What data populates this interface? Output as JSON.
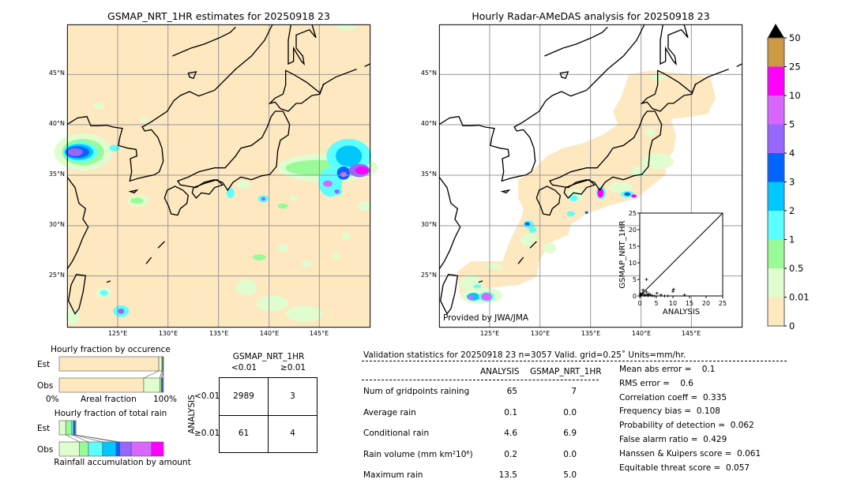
{
  "left_map": {
    "title": "GSMAP_NRT_1HR estimates for 20250918 23",
    "background": "#fee8c0"
  },
  "right_map": {
    "title": "Hourly Radar-AMeDAS analysis for 20250918 23",
    "credit": "Provided by JWA/JMA"
  },
  "lat_labels": [
    "45°N",
    "40°N",
    "35°N",
    "30°N",
    "25°N"
  ],
  "lon_labels": [
    "125°E",
    "130°E",
    "135°E",
    "140°E",
    "145°E"
  ],
  "colorbar": {
    "labels": [
      "0",
      "0.01",
      "0.5",
      "1",
      "2",
      "3",
      "4",
      "5",
      "10",
      "25",
      "50"
    ],
    "colors": [
      "#fee8c0",
      "#e0fdd0",
      "#98fb98",
      "#5cffff",
      "#00c8ff",
      "#0064ff",
      "#9966ff",
      "#d966ff",
      "#ff00ff",
      "#cc9944"
    ],
    "extend_color": "#000000"
  },
  "chart_data": [
    {
      "type": "scatter",
      "xlabel": "ANALYSIS",
      "ylabel": "GSMAP_NRT_1HR",
      "xlim": [
        0,
        25
      ],
      "ylim": [
        0,
        25
      ],
      "xticks": [
        "0",
        "5",
        "10",
        "15",
        "20",
        "25"
      ],
      "yticks": [
        "0",
        "5",
        "10",
        "15",
        "20",
        "25"
      ],
      "points": [
        [
          2,
          5
        ],
        [
          10.2,
          2
        ],
        [
          10,
          1.4
        ],
        [
          13.5,
          0.3
        ],
        [
          5.2,
          0.8
        ],
        [
          6.4,
          0.3
        ],
        [
          1,
          1.8
        ],
        [
          2,
          1.2
        ],
        [
          2.8,
          0.6
        ],
        [
          0.5,
          0.3
        ],
        [
          1.5,
          0.2
        ],
        [
          2.5,
          0.1
        ],
        [
          0.2,
          0.6
        ],
        [
          3.8,
          0.1
        ],
        [
          0.8,
          0.9
        ],
        [
          3.2,
          0.3
        ],
        [
          1.2,
          0.5
        ],
        [
          0.3,
          0.1
        ],
        [
          2.2,
          0.4
        ],
        [
          4.5,
          0.0
        ],
        [
          7.5,
          0.0
        ],
        [
          8.5,
          0.0
        ]
      ]
    },
    {
      "type": "bar",
      "title": "Hourly fraction by occurence",
      "categories": [
        "Est",
        "Obs"
      ],
      "xlabel": "Areal fraction",
      "x_min_label": "0%",
      "x_max_label": "100%",
      "segments": {
        "Est": [
          0.955,
          0.03,
          0.008,
          0.005,
          0.002
        ],
        "Obs": [
          0.81,
          0.155,
          0.015,
          0.01,
          0.01
        ]
      }
    },
    {
      "type": "bar",
      "title": "Hourly fraction of total rain",
      "categories": [
        "Est",
        "Obs"
      ],
      "xlabel": "Rainfall accumulation by amount",
      "segments": {
        "Est": [
          0.0625,
          0.0575,
          0.015,
          0.015,
          0.01
        ],
        "Obs": [
          0.195,
          0.085,
          0.135,
          0.13,
          0.035,
          0.11,
          0.195,
          0.115
        ]
      }
    },
    {
      "type": "table",
      "title": "GSMAP_NRT_1HR",
      "col_labels": [
        "<0.01",
        "≥0.01"
      ],
      "row_title": "ANALYSIS",
      "row_labels": [
        "<0.01",
        "≥0.01"
      ],
      "cells": [
        [
          "2989",
          "3"
        ],
        [
          "61",
          "4"
        ]
      ]
    }
  ],
  "validation": {
    "header": "Validation statistics for 20250918 23  n=3057 Valid. grid=0.25˚ Units=mm/hr.",
    "col_analysis": "ANALYSIS",
    "col_gsmap": "GSMAP_NRT_1HR",
    "rows": [
      {
        "label": "Num of gridpoints raining",
        "analysis": "65",
        "gsmap": "7"
      },
      {
        "label": "Average rain",
        "analysis": "0.1",
        "gsmap": "0.0"
      },
      {
        "label": "Conditional rain",
        "analysis": "4.6",
        "gsmap": "6.9"
      },
      {
        "label": "Rain volume (mm km²10⁶)",
        "analysis": "0.2",
        "gsmap": "0.0"
      },
      {
        "label": "Maximum rain",
        "analysis": "13.5",
        "gsmap": "5.0"
      }
    ],
    "scores": [
      "Mean abs error =    0.1",
      "RMS error =    0.6",
      "Correlation coeff =  0.335",
      "Frequency bias =  0.108",
      "Probability of detection =  0.062",
      "False alarm ratio =  0.429",
      "Hanssen & Kuipers score =  0.061",
      "Equitable threat score =  0.057"
    ]
  }
}
